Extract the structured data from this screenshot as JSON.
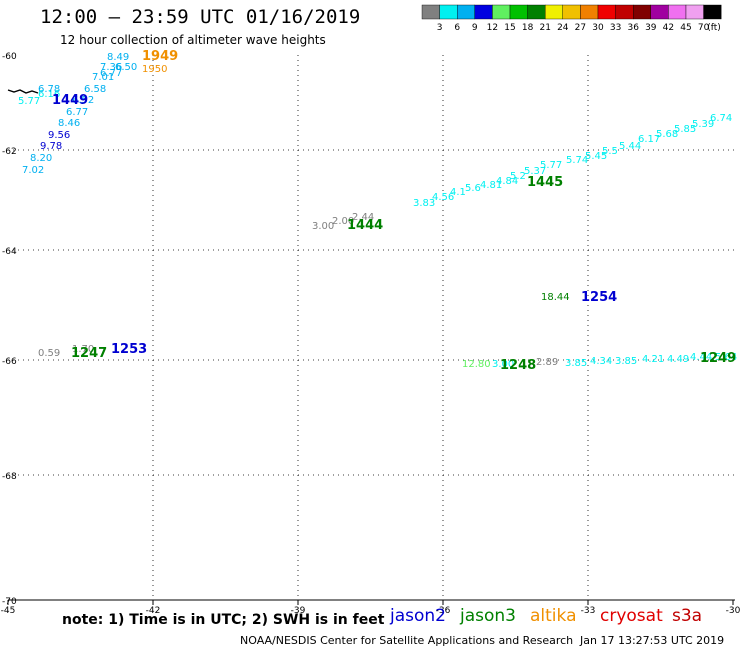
{
  "header": {
    "title": "12:00 – 23:59 UTC 01/16/2019",
    "subtitle": "12 hour collection of altimeter wave heights"
  },
  "colorbar": {
    "unit": "(ft)",
    "labels": [
      "3",
      "6",
      "9",
      "12",
      "15",
      "18",
      "21",
      "24",
      "27",
      "30",
      "33",
      "36",
      "39",
      "42",
      "45",
      "70"
    ],
    "colors": [
      "#808080",
      "#00f0f0",
      "#00b0f0",
      "#0000e0",
      "#60f060",
      "#00c000",
      "#008000",
      "#f0f000",
      "#f0c000",
      "#f08000",
      "#f00000",
      "#c00000",
      "#800000",
      "#a000a0",
      "#f070f0",
      "#f0a0f0",
      "#000000"
    ]
  },
  "axes": {
    "x_ticks": [
      "-45",
      "-42",
      "-39",
      "-36",
      "-33",
      "-30"
    ],
    "y_ticks": [
      "-60",
      "-62",
      "-64",
      "-66",
      "-68",
      "-70"
    ]
  },
  "footer": {
    "note": "note: 1) Time is in UTC; 2) SWH is in feet",
    "credit": "NOAA/NESDIS Center for Satellite Applications and Research",
    "stamp": "Jan 17 13:27:53 UTC 2019",
    "satellites": [
      {
        "name": "jason2",
        "color": "#0000d0"
      },
      {
        "name": "jason3",
        "color": "#008000"
      },
      {
        "name": "altika",
        "color": "#f09000"
      },
      {
        "name": "cryosat",
        "color": "#e00000"
      },
      {
        "name": "s3a",
        "color": "#c00000"
      }
    ]
  },
  "tracks": [
    {
      "time": "1949",
      "color": "#f09000",
      "points": [
        [
          "8.49",
          "#00b0f0"
        ],
        [
          "7.36",
          "#00b0f0"
        ],
        [
          "6.50",
          "#00b0f0"
        ],
        [
          "6.77",
          "#00b0f0"
        ],
        [
          "7.01",
          "#00b0f0"
        ],
        [
          "6.58",
          "#00b0f0"
        ],
        [
          "1950",
          "#f09000"
        ]
      ]
    },
    {
      "time": "1449",
      "color": "#0000d0",
      "points": [
        [
          "5.77",
          "#00f0f0"
        ],
        [
          "6.16",
          "#00f0f0"
        ],
        [
          "6.78",
          "#00b0f0"
        ],
        [
          "6.52",
          "#00b0f0"
        ],
        [
          "6.77",
          "#00b0f0"
        ],
        [
          "8.46",
          "#00b0f0"
        ],
        [
          "9.56",
          "#0000d0"
        ],
        [
          "9.78",
          "#0000d0"
        ],
        [
          "8.20",
          "#00b0f0"
        ],
        [
          "7.02",
          "#00b0f0"
        ]
      ]
    },
    {
      "time": "1444",
      "color": "#008000",
      "points": [
        [
          "3.00",
          "#808080"
        ],
        [
          "2.00",
          "#808080"
        ],
        [
          "2.44",
          "#808080"
        ]
      ]
    },
    {
      "time": "1445",
      "color": "#008000",
      "points": [
        [
          "3.83",
          "#00f0f0"
        ],
        [
          "4.56",
          "#00f0f0"
        ],
        [
          "4.1",
          "#00f0f0"
        ],
        [
          "5.6",
          "#00f0f0"
        ],
        [
          "4.81",
          "#00f0f0"
        ],
        [
          "4.84",
          "#00f0f0"
        ],
        [
          "5.2",
          "#00f0f0"
        ],
        [
          "5.37",
          "#00f0f0"
        ],
        [
          "5.77",
          "#00f0f0"
        ],
        [
          "5.74",
          "#00f0f0"
        ],
        [
          "5.45",
          "#00f0f0"
        ],
        [
          "5.5",
          "#00f0f0"
        ],
        [
          "5.44",
          "#00f0f0"
        ],
        [
          "6.17",
          "#00f0f0"
        ],
        [
          "5.68",
          "#00f0f0"
        ],
        [
          "5.85",
          "#00f0f0"
        ],
        [
          "5.39",
          "#00f0f0"
        ],
        [
          "6.74",
          "#00f0f0"
        ]
      ]
    },
    {
      "time": "1254",
      "color": "#0000d0",
      "points": [
        [
          "18.44",
          "#008000"
        ]
      ]
    },
    {
      "time": "1253",
      "color": "#0000d0",
      "points": [
        [
          "0.59",
          "#808080"
        ],
        [
          "1.70",
          "#808080"
        ]
      ]
    },
    {
      "time": "1247",
      "color": "#008000",
      "points": []
    },
    {
      "time": "1248",
      "color": "#008000",
      "points": [
        [
          "12.80",
          "#60f060"
        ],
        [
          "3.00",
          "#00f0f0"
        ],
        [
          "2.89",
          "#808080"
        ]
      ]
    },
    {
      "time": "1249",
      "color": "#008000",
      "points": [
        [
          "3.85",
          "#00f0f0"
        ],
        [
          "4.34",
          "#00f0f0"
        ],
        [
          "3.85",
          "#00f0f0"
        ],
        [
          "4.21",
          "#00f0f0"
        ],
        [
          "4.49",
          "#00f0f0"
        ],
        [
          "4.44",
          "#00f0f0"
        ],
        [
          "5.64",
          "#00f0f0"
        ]
      ]
    }
  ]
}
